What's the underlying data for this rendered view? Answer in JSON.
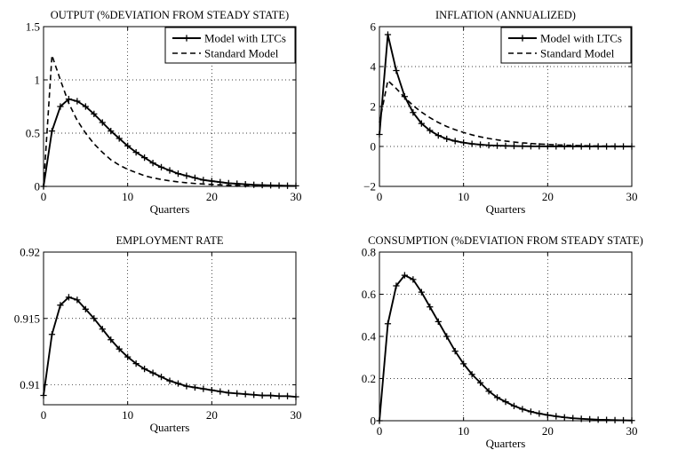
{
  "chart_data": [
    {
      "type": "line",
      "title": "OUTPUT (%DEVIATION FROM STEADY STATE)",
      "xlabel": "Quarters",
      "ylabel": "",
      "xlim": [
        0,
        30
      ],
      "ylim": [
        0,
        1.5
      ],
      "xticks": [
        0,
        10,
        20,
        30
      ],
      "xtick_labels": [
        "0",
        "10",
        "20",
        "30"
      ],
      "yticks": [
        0,
        0.5,
        1,
        1.5
      ],
      "ytick_labels": [
        "0",
        "0.5",
        "1",
        "1.5"
      ],
      "grid": true,
      "legend_position": "top-right",
      "x": [
        0,
        1,
        2,
        3,
        4,
        5,
        6,
        7,
        8,
        9,
        10,
        11,
        12,
        13,
        14,
        15,
        16,
        17,
        18,
        19,
        20,
        21,
        22,
        23,
        24,
        25,
        26,
        27,
        28,
        29,
        30
      ],
      "series": [
        {
          "name": "Model with LTCs",
          "style": "solid-plus",
          "values": [
            0,
            0.52,
            0.75,
            0.82,
            0.8,
            0.75,
            0.68,
            0.6,
            0.52,
            0.45,
            0.38,
            0.32,
            0.27,
            0.22,
            0.18,
            0.15,
            0.12,
            0.1,
            0.08,
            0.06,
            0.05,
            0.04,
            0.03,
            0.025,
            0.02,
            0.015,
            0.012,
            0.01,
            0.008,
            0.006,
            0.005
          ]
        },
        {
          "name": "Standard Model",
          "style": "dashed",
          "values": [
            0,
            1.23,
            1.0,
            0.78,
            0.62,
            0.5,
            0.4,
            0.32,
            0.25,
            0.2,
            0.16,
            0.13,
            0.1,
            0.08,
            0.065,
            0.052,
            0.042,
            0.034,
            0.027,
            0.022,
            0.018,
            0.014,
            0.011,
            0.009,
            0.007,
            0.006,
            0.005,
            0.004,
            0.003,
            0.002,
            0.002
          ]
        }
      ]
    },
    {
      "type": "line",
      "title": "INFLATION (ANNUALIZED)",
      "xlabel": "Quarters",
      "ylabel": "",
      "xlim": [
        0,
        30
      ],
      "ylim": [
        -2,
        6
      ],
      "xticks": [
        0,
        10,
        20,
        30
      ],
      "xtick_labels": [
        "0",
        "10",
        "20",
        "30"
      ],
      "yticks": [
        -2,
        0,
        2,
        4,
        6
      ],
      "ytick_labels": [
        "−2",
        "0",
        "2",
        "4",
        "6"
      ],
      "grid": true,
      "legend_position": "top-right",
      "x": [
        0,
        1,
        2,
        3,
        4,
        5,
        6,
        7,
        8,
        9,
        10,
        11,
        12,
        13,
        14,
        15,
        16,
        17,
        18,
        19,
        20,
        21,
        22,
        23,
        24,
        25,
        26,
        27,
        28,
        29,
        30
      ],
      "series": [
        {
          "name": "Model with LTCs",
          "style": "solid-plus",
          "values": [
            0.6,
            5.6,
            3.8,
            2.5,
            1.7,
            1.15,
            0.8,
            0.55,
            0.38,
            0.27,
            0.19,
            0.13,
            0.09,
            0.06,
            0.04,
            0.03,
            0.02,
            0.015,
            0.01,
            0.008,
            0.005,
            0.004,
            0.003,
            0.002,
            0.001,
            0.001,
            0,
            0,
            0,
            0,
            0
          ]
        },
        {
          "name": "Standard Model",
          "style": "dashed",
          "values": [
            1.2,
            3.3,
            2.9,
            2.45,
            2.05,
            1.72,
            1.44,
            1.2,
            1.0,
            0.84,
            0.7,
            0.58,
            0.48,
            0.4,
            0.33,
            0.27,
            0.22,
            0.18,
            0.15,
            0.12,
            0.1,
            0.08,
            0.065,
            0.05,
            0.04,
            0.03,
            0.025,
            0.02,
            0.015,
            0.01,
            0.008
          ]
        }
      ]
    },
    {
      "type": "line",
      "title": "EMPLOYMENT RATE",
      "xlabel": "Quarters",
      "ylabel": "",
      "xlim": [
        0,
        30
      ],
      "ylim": [
        0.9085,
        0.92
      ],
      "xticks": [
        0,
        10,
        20,
        30
      ],
      "xtick_labels": [
        "0",
        "10",
        "20",
        "30"
      ],
      "yticks": [
        0.91,
        0.915,
        0.92
      ],
      "ytick_labels": [
        "0.91",
        "0.915",
        "0.92"
      ],
      "grid": true,
      "x": [
        0,
        1,
        2,
        3,
        4,
        5,
        6,
        7,
        8,
        9,
        10,
        11,
        12,
        13,
        14,
        15,
        16,
        17,
        18,
        19,
        20,
        21,
        22,
        23,
        24,
        25,
        26,
        27,
        28,
        29,
        30
      ],
      "series": [
        {
          "style": "solid-plus",
          "values": [
            0.9092,
            0.9138,
            0.916,
            0.9166,
            0.9164,
            0.9157,
            0.915,
            0.9142,
            0.9134,
            0.9127,
            0.9121,
            0.9116,
            0.9112,
            0.9109,
            0.9106,
            0.9103,
            0.9101,
            0.9099,
            0.9098,
            0.9097,
            0.9096,
            0.9095,
            0.9094,
            0.90935,
            0.9093,
            0.90925,
            0.9092,
            0.9092,
            0.90915,
            0.90915,
            0.9091
          ]
        }
      ]
    },
    {
      "type": "line",
      "title": "CONSUMPTION (%DEVIATION FROM STEADY STATE)",
      "xlabel": "Quarters",
      "ylabel": "",
      "xlim": [
        0,
        30
      ],
      "ylim": [
        0,
        0.8
      ],
      "xticks": [
        0,
        10,
        20,
        30
      ],
      "xtick_labels": [
        "0",
        "10",
        "20",
        "30"
      ],
      "yticks": [
        0,
        0.2,
        0.4,
        0.6,
        0.8
      ],
      "ytick_labels": [
        "0",
        "0.2",
        "0.4",
        "0.6",
        "0.8"
      ],
      "grid": true,
      "x": [
        0,
        1,
        2,
        3,
        4,
        5,
        6,
        7,
        8,
        9,
        10,
        11,
        12,
        13,
        14,
        15,
        16,
        17,
        18,
        19,
        20,
        21,
        22,
        23,
        24,
        25,
        26,
        27,
        28,
        29,
        30
      ],
      "series": [
        {
          "style": "solid-plus",
          "values": [
            0,
            0.46,
            0.64,
            0.69,
            0.67,
            0.61,
            0.54,
            0.47,
            0.4,
            0.33,
            0.27,
            0.22,
            0.18,
            0.14,
            0.11,
            0.09,
            0.07,
            0.055,
            0.043,
            0.034,
            0.027,
            0.021,
            0.016,
            0.012,
            0.009,
            0.007,
            0.005,
            0.004,
            0.003,
            0.002,
            0.001
          ]
        }
      ]
    }
  ]
}
